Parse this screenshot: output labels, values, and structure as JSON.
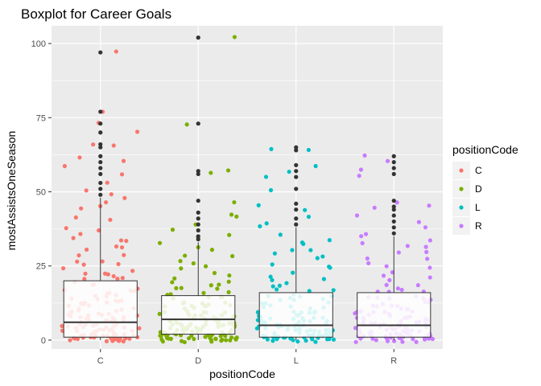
{
  "chart_data": {
    "type": "boxplot",
    "title": "Boxplot for Career Goals",
    "xlabel": "positionCode",
    "ylabel": "mostAssistsOneSeason",
    "categories": [
      "C",
      "D",
      "L",
      "R"
    ],
    "ylim": [
      -3,
      106
    ],
    "yticks": [
      0,
      25,
      50,
      75,
      100
    ],
    "grid": true,
    "legend": {
      "title": "positionCode",
      "placement": "right",
      "entries": [
        "C",
        "D",
        "L",
        "R"
      ]
    },
    "colors": {
      "C": "#F8766D",
      "D": "#7CAE00",
      "L": "#00BFC4",
      "R": "#C77CFF",
      "outlier": "#333333",
      "panel_bg": "#EBEBEB",
      "grid_major": "#FFFFFF"
    },
    "boxes": [
      {
        "category": "C",
        "q1": 1,
        "median": 6,
        "q3": 20,
        "whisker_low": 0,
        "whisker_high": 48,
        "outliers": [
          49,
          51,
          53,
          56,
          58,
          60,
          62,
          65,
          66,
          70,
          73,
          77,
          97
        ]
      },
      {
        "category": "D",
        "q1": 2,
        "median": 7,
        "q3": 15,
        "whisker_low": 0,
        "whisker_high": 33,
        "outliers": [
          34,
          35,
          37,
          39,
          41,
          43,
          47,
          56,
          57,
          73,
          102
        ]
      },
      {
        "category": "L",
        "q1": 1,
        "median": 5,
        "q3": 16,
        "whisker_low": 0,
        "whisker_high": 38,
        "outliers": [
          39,
          41,
          44,
          46,
          51,
          55,
          57,
          59,
          64,
          65
        ]
      },
      {
        "category": "R",
        "q1": 1,
        "median": 5,
        "q3": 16,
        "whisker_low": 0,
        "whisker_high": 35,
        "outliers": [
          36,
          38,
          40,
          42,
          44,
          45,
          47,
          56,
          58,
          60,
          62
        ]
      }
    ],
    "points": {
      "C": [
        0,
        0,
        0,
        0,
        0,
        0,
        0,
        0,
        0,
        0,
        0,
        0,
        1,
        1,
        1,
        1,
        1,
        1,
        1,
        1,
        1,
        1,
        1,
        1,
        2,
        2,
        2,
        2,
        2,
        2,
        2,
        2,
        2,
        2,
        2,
        3,
        3,
        3,
        3,
        3,
        3,
        3,
        3,
        3,
        4,
        4,
        4,
        4,
        4,
        4,
        4,
        4,
        5,
        5,
        5,
        5,
        5,
        5,
        5,
        6,
        6,
        6,
        6,
        6,
        6,
        7,
        7,
        7,
        7,
        7,
        7,
        8,
        8,
        8,
        8,
        8,
        9,
        9,
        9,
        9,
        9,
        10,
        10,
        10,
        10,
        11,
        11,
        11,
        11,
        12,
        12,
        12,
        12,
        13,
        13,
        13,
        14,
        14,
        14,
        15,
        15,
        15,
        16,
        16,
        16,
        17,
        17,
        18,
        18,
        19,
        19,
        20,
        20,
        21,
        21,
        22,
        22,
        23,
        23,
        24,
        25,
        25,
        26,
        27,
        28,
        29,
        30,
        31,
        32,
        33,
        34,
        35,
        36,
        37,
        38,
        40,
        42,
        44,
        45,
        47,
        48,
        49,
        51,
        53,
        56,
        58,
        60,
        62,
        65,
        66,
        70,
        73,
        77,
        97
      ],
      "D": [
        0,
        0,
        0,
        0,
        0,
        0,
        0,
        0,
        0,
        0,
        0,
        0,
        0,
        0,
        1,
        1,
        1,
        1,
        1,
        1,
        1,
        1,
        1,
        1,
        1,
        1,
        1,
        2,
        2,
        2,
        2,
        2,
        2,
        2,
        2,
        2,
        2,
        2,
        2,
        3,
        3,
        3,
        3,
        3,
        3,
        3,
        3,
        3,
        3,
        3,
        4,
        4,
        4,
        4,
        4,
        4,
        4,
        4,
        4,
        4,
        5,
        5,
        5,
        5,
        5,
        5,
        5,
        5,
        5,
        6,
        6,
        6,
        6,
        6,
        6,
        6,
        6,
        7,
        7,
        7,
        7,
        7,
        7,
        7,
        8,
        8,
        8,
        8,
        8,
        8,
        9,
        9,
        9,
        9,
        9,
        10,
        10,
        10,
        10,
        10,
        11,
        11,
        11,
        11,
        12,
        12,
        12,
        12,
        13,
        13,
        13,
        14,
        14,
        14,
        15,
        15,
        15,
        16,
        16,
        17,
        17,
        18,
        18,
        19,
        19,
        20,
        21,
        22,
        23,
        24,
        25,
        26,
        27,
        28,
        29,
        30,
        31,
        33,
        34,
        35,
        37,
        39,
        41,
        43,
        47,
        56,
        57,
        73,
        102
      ],
      "L": [
        0,
        0,
        0,
        0,
        0,
        0,
        0,
        0,
        0,
        0,
        0,
        0,
        0,
        1,
        1,
        1,
        1,
        1,
        1,
        1,
        1,
        1,
        1,
        1,
        1,
        2,
        2,
        2,
        2,
        2,
        2,
        2,
        2,
        2,
        2,
        2,
        3,
        3,
        3,
        3,
        3,
        3,
        3,
        3,
        3,
        3,
        4,
        4,
        4,
        4,
        4,
        4,
        4,
        4,
        4,
        5,
        5,
        5,
        5,
        5,
        5,
        5,
        5,
        6,
        6,
        6,
        6,
        6,
        6,
        6,
        7,
        7,
        7,
        7,
        7,
        7,
        8,
        8,
        8,
        8,
        8,
        9,
        9,
        9,
        9,
        9,
        10,
        10,
        10,
        10,
        11,
        11,
        11,
        11,
        12,
        12,
        12,
        13,
        13,
        13,
        14,
        14,
        14,
        15,
        15,
        15,
        16,
        16,
        17,
        17,
        18,
        18,
        19,
        20,
        21,
        22,
        23,
        24,
        25,
        26,
        27,
        28,
        29,
        30,
        31,
        32,
        33,
        34,
        36,
        38,
        39,
        41,
        44,
        46,
        51,
        55,
        57,
        59,
        64,
        65
      ],
      "R": [
        0,
        0,
        0,
        0,
        0,
        0,
        0,
        0,
        0,
        0,
        0,
        0,
        0,
        1,
        1,
        1,
        1,
        1,
        1,
        1,
        1,
        1,
        1,
        1,
        1,
        2,
        2,
        2,
        2,
        2,
        2,
        2,
        2,
        2,
        2,
        3,
        3,
        3,
        3,
        3,
        3,
        3,
        3,
        3,
        4,
        4,
        4,
        4,
        4,
        4,
        4,
        4,
        5,
        5,
        5,
        5,
        5,
        5,
        5,
        5,
        6,
        6,
        6,
        6,
        6,
        6,
        6,
        7,
        7,
        7,
        7,
        7,
        7,
        8,
        8,
        8,
        8,
        8,
        9,
        9,
        9,
        9,
        9,
        10,
        10,
        10,
        10,
        11,
        11,
        11,
        11,
        12,
        12,
        12,
        13,
        13,
        13,
        14,
        14,
        14,
        15,
        15,
        16,
        16,
        17,
        17,
        18,
        18,
        19,
        20,
        21,
        22,
        23,
        24,
        25,
        26,
        27,
        28,
        29,
        30,
        31,
        32,
        33,
        34,
        35,
        36,
        38,
        40,
        42,
        44,
        45,
        47,
        56,
        58,
        60,
        62
      ]
    }
  }
}
